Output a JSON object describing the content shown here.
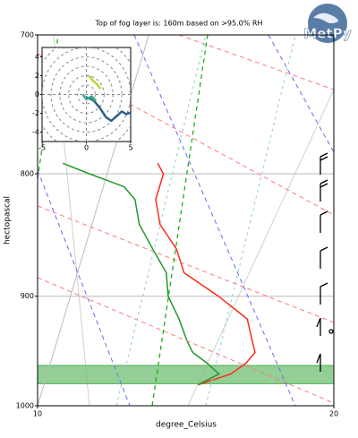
{
  "chart_data": [
    {
      "type": "skewt",
      "title": "Top of fog layer is: 160m based on >95.0% RH",
      "xlabel": "degree_Celsius",
      "ylabel": "hectopascal",
      "xlim": [
        10,
        20
      ],
      "xticks": [
        10,
        20
      ],
      "ylim": [
        1000,
        700
      ],
      "yticks": [
        700,
        800,
        900,
        1000
      ],
      "log_y": true,
      "grid": true,
      "fog_layer": [
        962,
        979
      ],
      "fog_color": "#4caf50",
      "pressure": [
        980,
        970,
        960,
        950,
        940,
        920,
        900,
        880,
        860,
        840,
        820,
        810,
        800,
        792
      ],
      "series": [
        {
          "color": "#ff2a1a",
          "values": [
            15.2,
            16.2,
            16.6,
            16.8,
            16.6,
            16.2,
            15.0,
            13.6,
            13.1,
            12.3,
            11.9,
            11.9,
            11.9,
            11.6
          ]
        },
        {
          "color": "#1f9a2a",
          "values": [
            15.2,
            15.8,
            15.3,
            14.7,
            14.4,
            13.9,
            13.3,
            13.0,
            12.3,
            11.6,
            11.2,
            10.7,
            9.4,
            8.4
          ]
        }
      ],
      "logo_text": "MetPy"
    },
    {
      "type": "hodograph",
      "xlim": [
        -5,
        5
      ],
      "ylim": [
        -5,
        5
      ],
      "xticks": [
        -5,
        0,
        5
      ],
      "yticks": [
        -4,
        -2,
        0,
        2,
        4
      ],
      "series": [
        {
          "color": "#2c5f8a",
          "x": [
            0,
            0.8,
            1.5,
            2.2,
            2.8,
            3.3,
            4,
            4.5,
            5
          ],
          "values": [
            -0.3,
            -0.6,
            -1.4,
            -2.4,
            -2.8,
            -2.4,
            -1.8,
            -2.1,
            -1.9
          ]
        },
        {
          "color": "#3aa88a",
          "x": [
            -0.4,
            0,
            0.6,
            1,
            0.5
          ],
          "values": [
            0,
            -0.5,
            -0.2,
            -0.6,
            -0.3
          ]
        },
        {
          "color": "#b8d630",
          "x": [
            0.3,
            0.8,
            1.3,
            1.6
          ],
          "values": [
            2,
            1.4,
            1,
            0.6
          ]
        }
      ]
    }
  ]
}
